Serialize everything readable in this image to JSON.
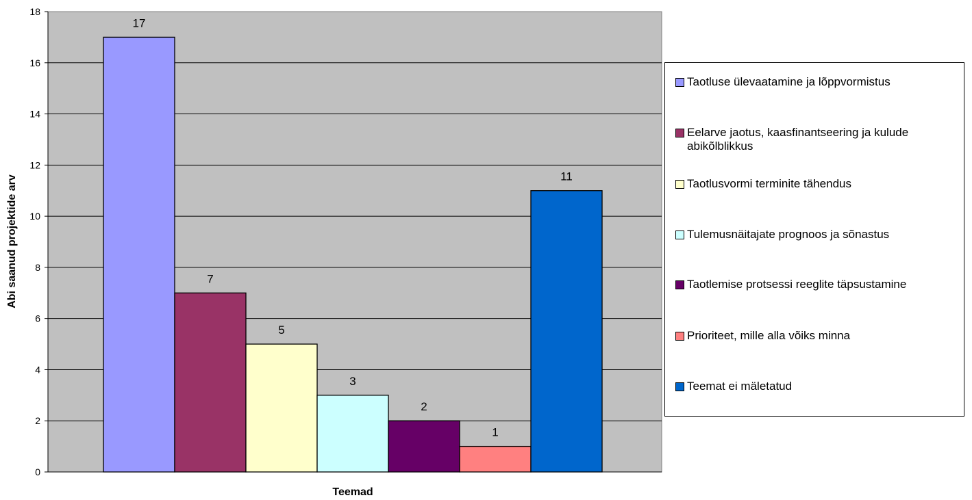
{
  "chart_data": {
    "type": "bar",
    "title": "",
    "xlabel": "Teemad",
    "ylabel": "Abi saanud projektide arv",
    "ylim": [
      0,
      18
    ],
    "yticks": [
      0,
      2,
      4,
      6,
      8,
      10,
      12,
      14,
      16,
      18
    ],
    "grid": true,
    "legend_position": "right",
    "plot_background": "#c0c0c0",
    "series": [
      {
        "name": "Taotluse ülevaatamine ja lõppvormistus",
        "value": 17,
        "color": "#9999ff"
      },
      {
        "name": "Eelarve jaotus, kaasfinantseering ja kulude abikõlblikkus",
        "value": 7,
        "color": "#993366"
      },
      {
        "name": "Taotlusvormi terminite tähendus",
        "value": 5,
        "color": "#ffffcc"
      },
      {
        "name": "Tulemusnäitajate prognoos ja sõnastus",
        "value": 3,
        "color": "#ccffff"
      },
      {
        "name": "Taotlemise protsessi reeglite täpsustamine",
        "value": 2,
        "color": "#660066"
      },
      {
        "name": "Prioriteet, mille alla võiks minna",
        "value": 1,
        "color": "#ff8080"
      },
      {
        "name": "Teemat ei mäletatud",
        "value": 11,
        "color": "#0066cc"
      }
    ]
  }
}
